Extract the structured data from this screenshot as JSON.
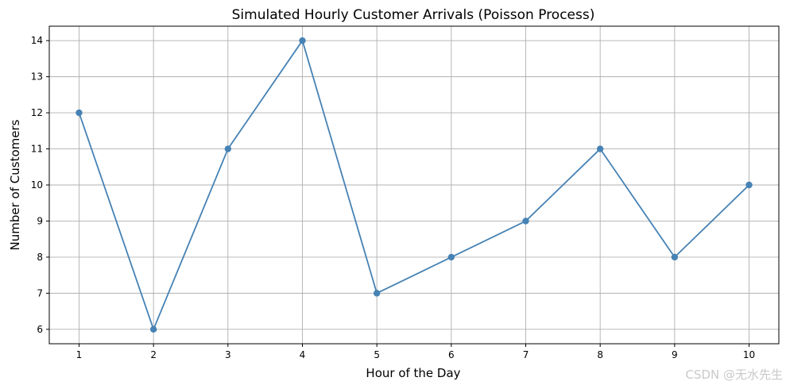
{
  "chart_data": {
    "type": "line",
    "title": "Simulated Hourly Customer Arrivals (Poisson Process)",
    "xlabel": "Hour of the Day",
    "ylabel": "Number of Customers",
    "x": [
      1,
      2,
      3,
      4,
      5,
      6,
      7,
      8,
      9,
      10
    ],
    "series": [
      {
        "values": [
          12,
          6,
          11,
          14,
          7,
          8,
          9,
          11,
          8,
          10
        ],
        "color": "#4682b4",
        "marker": "circle"
      }
    ],
    "xlim": [
      0.6,
      10.4
    ],
    "ylim": [
      5.6,
      14.4
    ],
    "xticks": [
      "1",
      "2",
      "3",
      "4",
      "5",
      "6",
      "7",
      "8",
      "9",
      "10"
    ],
    "yticks": [
      "6",
      "7",
      "8",
      "9",
      "10",
      "11",
      "12",
      "13",
      "14"
    ],
    "grid": true,
    "grid_color": "#b0b0b0",
    "legend": "none"
  },
  "watermark": "CSDN @无水先生"
}
